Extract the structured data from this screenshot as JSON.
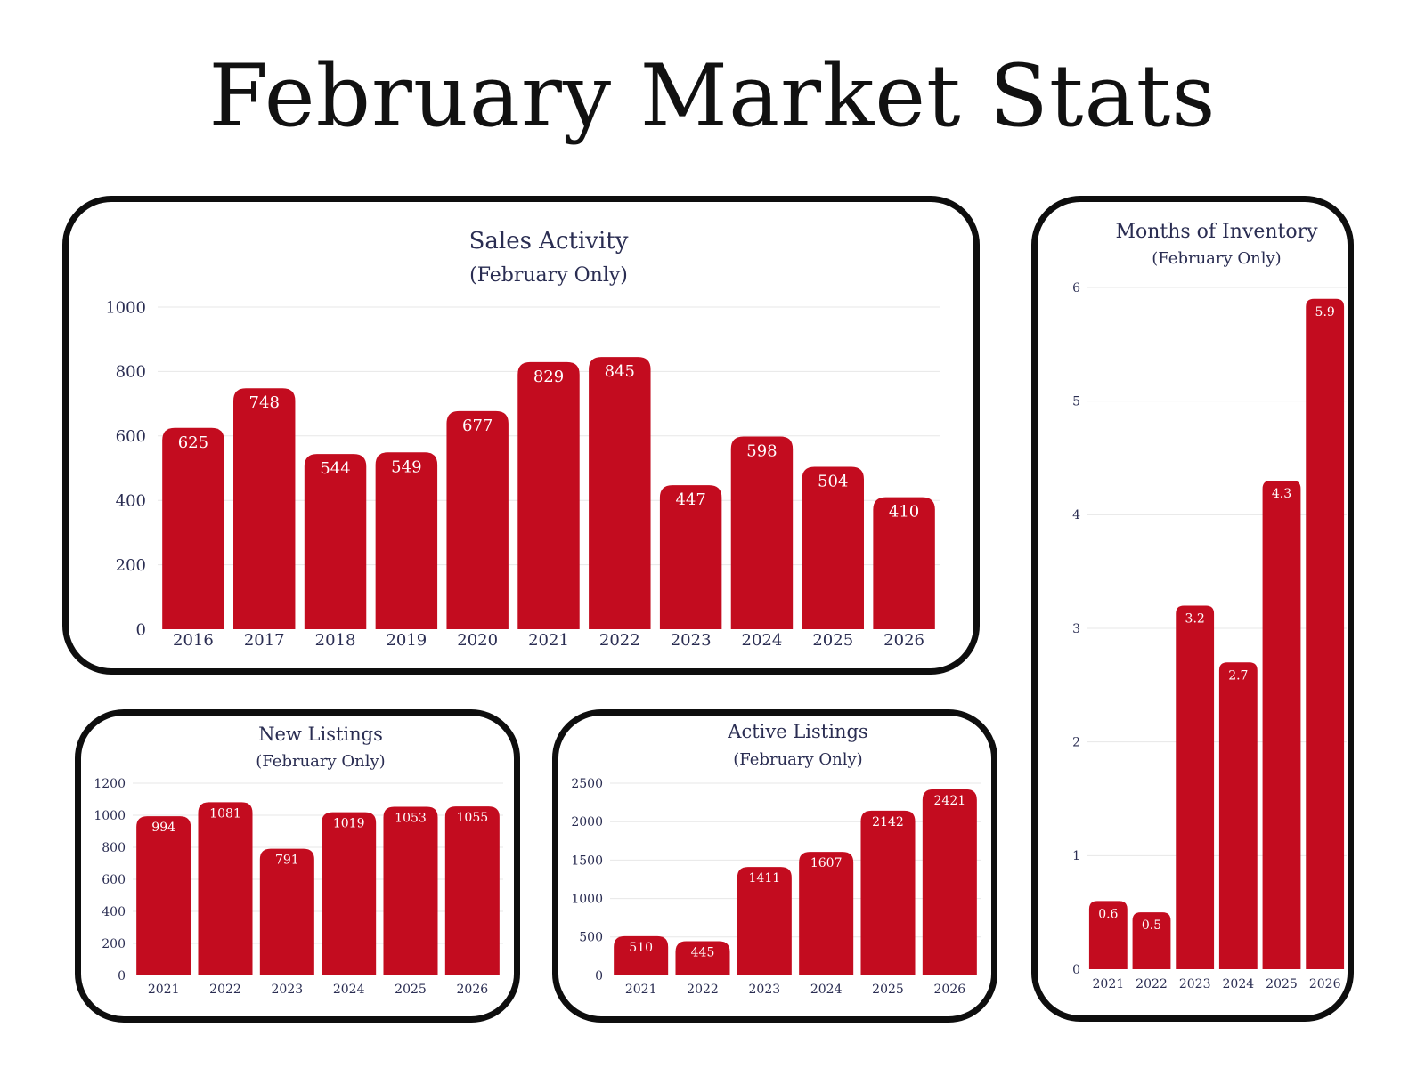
{
  "page": {
    "title": "February Market Stats"
  },
  "colors": {
    "bar": "#c30c1f",
    "text": "#2a2d52",
    "grid": "#e7e7e7",
    "border": "#0e0e0e"
  },
  "chart_data": [
    {
      "id": "sales-activity",
      "type": "bar",
      "title": "Sales Activity",
      "subtitle": "(February Only)",
      "categories": [
        "2016",
        "2017",
        "2018",
        "2019",
        "2020",
        "2021",
        "2022",
        "2023",
        "2024",
        "2025",
        "2026"
      ],
      "values": [
        625,
        748,
        544,
        549,
        677,
        829,
        845,
        447,
        598,
        504,
        410
      ],
      "ylim": [
        0,
        1000
      ],
      "yticks": [
        0,
        200,
        400,
        600,
        800,
        1000
      ],
      "grid": true,
      "data_labels": true
    },
    {
      "id": "months-of-inventory",
      "type": "bar",
      "title": "Months of Inventory",
      "subtitle": "(February Only)",
      "categories": [
        "2021",
        "2022",
        "2023",
        "2024",
        "2025",
        "2026"
      ],
      "values": [
        0.6,
        0.5,
        3.2,
        2.7,
        4.3,
        5.9
      ],
      "ylim": [
        0,
        6
      ],
      "yticks": [
        0,
        1,
        2,
        3,
        4,
        5,
        6
      ],
      "grid": true,
      "data_labels": true
    },
    {
      "id": "new-listings",
      "type": "bar",
      "title": "New Listings",
      "subtitle": "(February Only)",
      "categories": [
        "2021",
        "2022",
        "2023",
        "2024",
        "2025",
        "2026"
      ],
      "values": [
        994,
        1081,
        791,
        1019,
        1053,
        1055
      ],
      "ylim": [
        0,
        1200
      ],
      "yticks": [
        0,
        200,
        400,
        600,
        800,
        1000,
        1200
      ],
      "grid": true,
      "data_labels": true
    },
    {
      "id": "active-listings",
      "type": "bar",
      "title": "Active Listings",
      "subtitle": "(February Only)",
      "categories": [
        "2021",
        "2022",
        "2023",
        "2024",
        "2025",
        "2026"
      ],
      "values": [
        510,
        445,
        1411,
        1607,
        2142,
        2421
      ],
      "ylim": [
        0,
        2500
      ],
      "yticks": [
        0,
        500,
        1000,
        1500,
        2000,
        2500
      ],
      "grid": true,
      "data_labels": true
    }
  ]
}
